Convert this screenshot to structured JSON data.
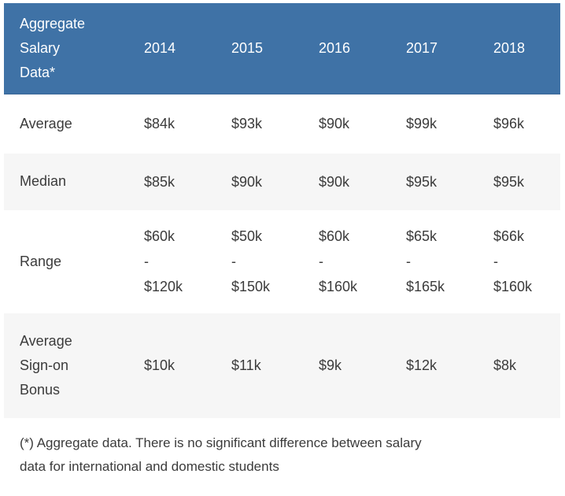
{
  "theme": {
    "header_bg": "#3f72a6",
    "header_text": "#ffffff",
    "stripe_bg": "#f6f6f6",
    "row_bg": "#ffffff",
    "body_text": "#3b3b3b"
  },
  "chart_data": {
    "type": "table",
    "title": "Aggregate Salary Data*",
    "corner_label": "Aggregate\nSalary\nData*",
    "columns": [
      "2014",
      "2015",
      "2016",
      "2017",
      "2018"
    ],
    "rows": [
      {
        "label": "Average",
        "values": [
          "$84k",
          "$93k",
          "$90k",
          "$99k",
          "$96k"
        ]
      },
      {
        "label": "Median",
        "values": [
          "$85k",
          "$90k",
          "$90k",
          "$95k",
          "$95k"
        ]
      },
      {
        "label": "Range",
        "values": [
          "$60k\n-\n$120k",
          "$50k\n-\n$150k",
          "$60k\n-\n$160k",
          "$65k\n-\n$165k",
          "$66k\n-\n$160k"
        ],
        "ranges": [
          {
            "min": "$60k",
            "max": "$120k"
          },
          {
            "min": "$50k",
            "max": "$150k"
          },
          {
            "min": "$60k",
            "max": "$160k"
          },
          {
            "min": "$65k",
            "max": "$165k"
          },
          {
            "min": "$66k",
            "max": "$160k"
          }
        ]
      },
      {
        "label": "Average\nSign-on\nBonus",
        "label_plain": "Average Sign-on Bonus",
        "values": [
          "$10k",
          "$11k",
          "$9k",
          "$12k",
          "$8k"
        ]
      }
    ],
    "footnote": "(*) Aggregate data. There is no significant difference between salary data for international and domestic students"
  },
  "footnote_display": "(*) Aggregate data. There is no significant difference between salary\ndata for international and domestic students"
}
